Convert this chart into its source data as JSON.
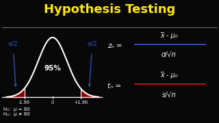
{
  "title": "Hypothesis Testing",
  "title_color": "#FFE800",
  "bg_color": "#080808",
  "bell_color": "#FFFFFF",
  "shade_color": "#8B0000",
  "axis_line_color": "#FFFFFF",
  "annotation_color": "#3355CC",
  "text_color": "#FFFFFF",
  "x_ticks": [
    -1.96,
    0,
    1.96
  ],
  "x_tick_labels": [
    "-1.96",
    "0",
    "+1.96"
  ],
  "center_pct": "95%",
  "alpha_label": "α/2",
  "h0_text": "H₀:  μ = 80",
  "ha_text": "Hₐ:  μ ≠ 80",
  "zc_lhs": "zₙ =",
  "tc_lhs": "tₙ =",
  "zc_numerator": "x̅ - μ₀",
  "zc_denominator": "σ/√n",
  "tc_numerator": "x̅ - μ₀",
  "tc_denominator": "s/√n",
  "zc_line_color": "#3355CC",
  "tc_line_color": "#CC1111",
  "sep_line_color": "#777777"
}
